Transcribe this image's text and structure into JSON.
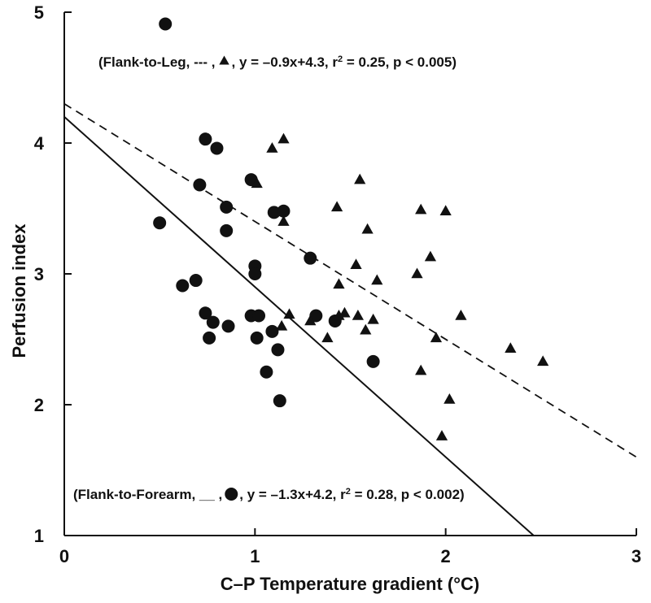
{
  "chart_data": {
    "type": "scatter",
    "xlabel": "C–P Temperature gradient (°C)",
    "ylabel": "Perfusion index",
    "xlim": [
      0,
      3
    ],
    "ylim": [
      1,
      5
    ],
    "xticks": [
      "0",
      "1",
      "2",
      "3"
    ],
    "yticks": [
      "1",
      "2",
      "3",
      "4",
      "5"
    ],
    "grid": false,
    "annotations": {
      "leg": {
        "before": "(Flank-to-Leg, --- , ",
        "after": " , y = –0.9x+4.3, r",
        "sup": "2",
        "tail": " = 0.25, p < 0.005)"
      },
      "forearm": {
        "before": "(Flank-to-Forearm, __ , ",
        "after": " , y = –1.3x+4.2, r",
        "sup": "2",
        "tail": " = 0.28,      p < 0.002)"
      }
    },
    "series": [
      {
        "marker": "circle",
        "fit": {
          "slope": -1.3,
          "intercept": 4.2,
          "style": "solid"
        },
        "points": [
          [
            0.53,
            4.91
          ],
          [
            0.5,
            3.39
          ],
          [
            0.62,
            2.91
          ],
          [
            0.69,
            2.95
          ],
          [
            0.71,
            3.68
          ],
          [
            0.74,
            4.03
          ],
          [
            0.74,
            2.7
          ],
          [
            0.76,
            2.51
          ],
          [
            0.78,
            2.63
          ],
          [
            0.8,
            3.96
          ],
          [
            0.85,
            3.33
          ],
          [
            0.85,
            3.51
          ],
          [
            0.86,
            2.6
          ],
          [
            0.98,
            3.72
          ],
          [
            0.98,
            2.68
          ],
          [
            1.0,
            3.06
          ],
          [
            1.0,
            3.0
          ],
          [
            1.01,
            2.51
          ],
          [
            1.02,
            2.68
          ],
          [
            1.06,
            2.25
          ],
          [
            1.09,
            2.56
          ],
          [
            1.1,
            3.47
          ],
          [
            1.12,
            2.42
          ],
          [
            1.13,
            2.03
          ],
          [
            1.15,
            3.48
          ],
          [
            1.29,
            3.12
          ],
          [
            1.32,
            2.68
          ],
          [
            1.42,
            2.64
          ],
          [
            1.62,
            2.33
          ]
        ]
      },
      {
        "marker": "triangle",
        "fit": {
          "slope": -0.9,
          "intercept": 4.3,
          "style": "dashed"
        },
        "points": [
          [
            1.01,
            3.69
          ],
          [
            1.09,
            3.96
          ],
          [
            1.15,
            4.03
          ],
          [
            1.15,
            3.4
          ],
          [
            1.14,
            2.6
          ],
          [
            1.18,
            2.69
          ],
          [
            1.29,
            2.64
          ],
          [
            1.38,
            2.51
          ],
          [
            1.43,
            3.51
          ],
          [
            1.44,
            2.92
          ],
          [
            1.44,
            2.68
          ],
          [
            1.47,
            2.7
          ],
          [
            1.53,
            3.07
          ],
          [
            1.54,
            2.68
          ],
          [
            1.55,
            3.72
          ],
          [
            1.58,
            2.57
          ],
          [
            1.59,
            3.34
          ],
          [
            1.62,
            2.65
          ],
          [
            1.64,
            2.95
          ],
          [
            1.85,
            3.0
          ],
          [
            1.87,
            3.49
          ],
          [
            1.87,
            2.26
          ],
          [
            1.92,
            3.13
          ],
          [
            1.95,
            2.51
          ],
          [
            1.98,
            1.76
          ],
          [
            2.0,
            3.48
          ],
          [
            2.02,
            2.04
          ],
          [
            2.08,
            2.68
          ],
          [
            2.34,
            2.43
          ],
          [
            2.51,
            2.33
          ]
        ]
      }
    ]
  }
}
